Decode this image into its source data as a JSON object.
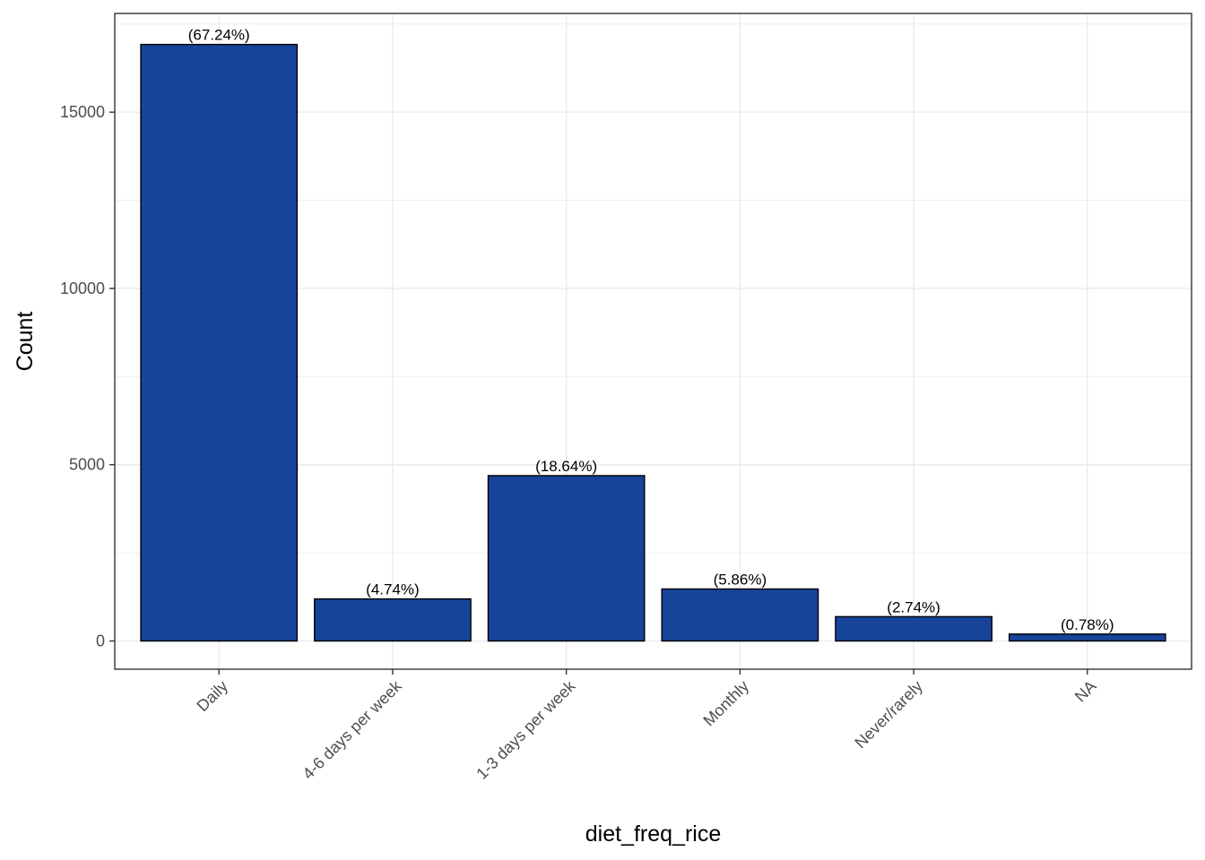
{
  "chart_data": {
    "type": "bar",
    "categories": [
      "Daily",
      "4-6 days per week",
      "1-3 days per week",
      "Monthly",
      "Never/rarely",
      "NA"
    ],
    "values": [
      16920,
      1193,
      4690,
      1475,
      690,
      196
    ],
    "labels": [
      "(67.24%)",
      "(4.74%)",
      "(18.64%)",
      "(5.86%)",
      "(2.74%)",
      "(0.78%)"
    ],
    "xlabel": "diet_freq_rice",
    "ylabel": "Count",
    "ylim": [
      -800,
      17800
    ],
    "yticks": [
      0,
      5000,
      10000,
      15000
    ],
    "ytick_labels": [
      "0",
      "5000",
      "10000",
      "15000"
    ],
    "grid": true,
    "legend": "none",
    "colors": {
      "bar_fill": "#17449A",
      "bar_stroke": "#000000",
      "grid": "#EBEBEB",
      "panel_border": "#333333"
    }
  }
}
